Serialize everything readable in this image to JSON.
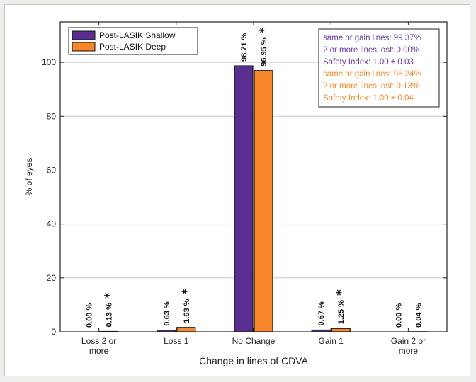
{
  "chart_data": {
    "type": "bar",
    "xlabel": "Change in lines of CDVA",
    "ylabel": "% of eyes",
    "ylim": [
      0,
      115
    ],
    "yticks": [
      0,
      20,
      40,
      60,
      80,
      100
    ],
    "grid": "horizontal",
    "legend_position": "top-left",
    "categories": [
      [
        "Loss 2 or",
        "more"
      ],
      [
        "Loss 1"
      ],
      [
        "No Change"
      ],
      [
        "Gain 1"
      ],
      [
        "Gain 2 or",
        "more"
      ]
    ],
    "series": [
      {
        "name": "Post-LASIK Shallow",
        "color": "#5a2d91",
        "values": [
          0.0,
          0.63,
          98.71,
          0.67,
          0.0
        ],
        "labels": [
          "0.00 %",
          "0.63 %",
          "98.71 %",
          "0.67 %",
          "0.00 %"
        ],
        "significant": [
          false,
          false,
          false,
          false,
          false
        ]
      },
      {
        "name": "Post-LASIK Deep",
        "color": "#f7862a",
        "values": [
          0.13,
          1.63,
          96.95,
          1.25,
          0.04
        ],
        "labels": [
          "0.13 %",
          "1.63 %",
          "96.95 %",
          "1.25 %",
          "0.04 %"
        ],
        "significant": [
          true,
          true,
          true,
          true,
          false
        ]
      }
    ],
    "significance_marker": "*",
    "stats_box": {
      "position": "top-right",
      "groups": [
        {
          "color": "#6a3aa2",
          "lines": [
            "same or gain lines: 99.37%",
            "2 or more lines lost: 0.00%",
            "Safety Index: 1.00 ± 0.03"
          ]
        },
        {
          "color": "#f08a2c",
          "lines": [
            "same or gain lines: 98.24%",
            "2 or more lines lost: 0.13%",
            "Safety Index: 1.00 ± 0.04"
          ]
        }
      ]
    }
  }
}
